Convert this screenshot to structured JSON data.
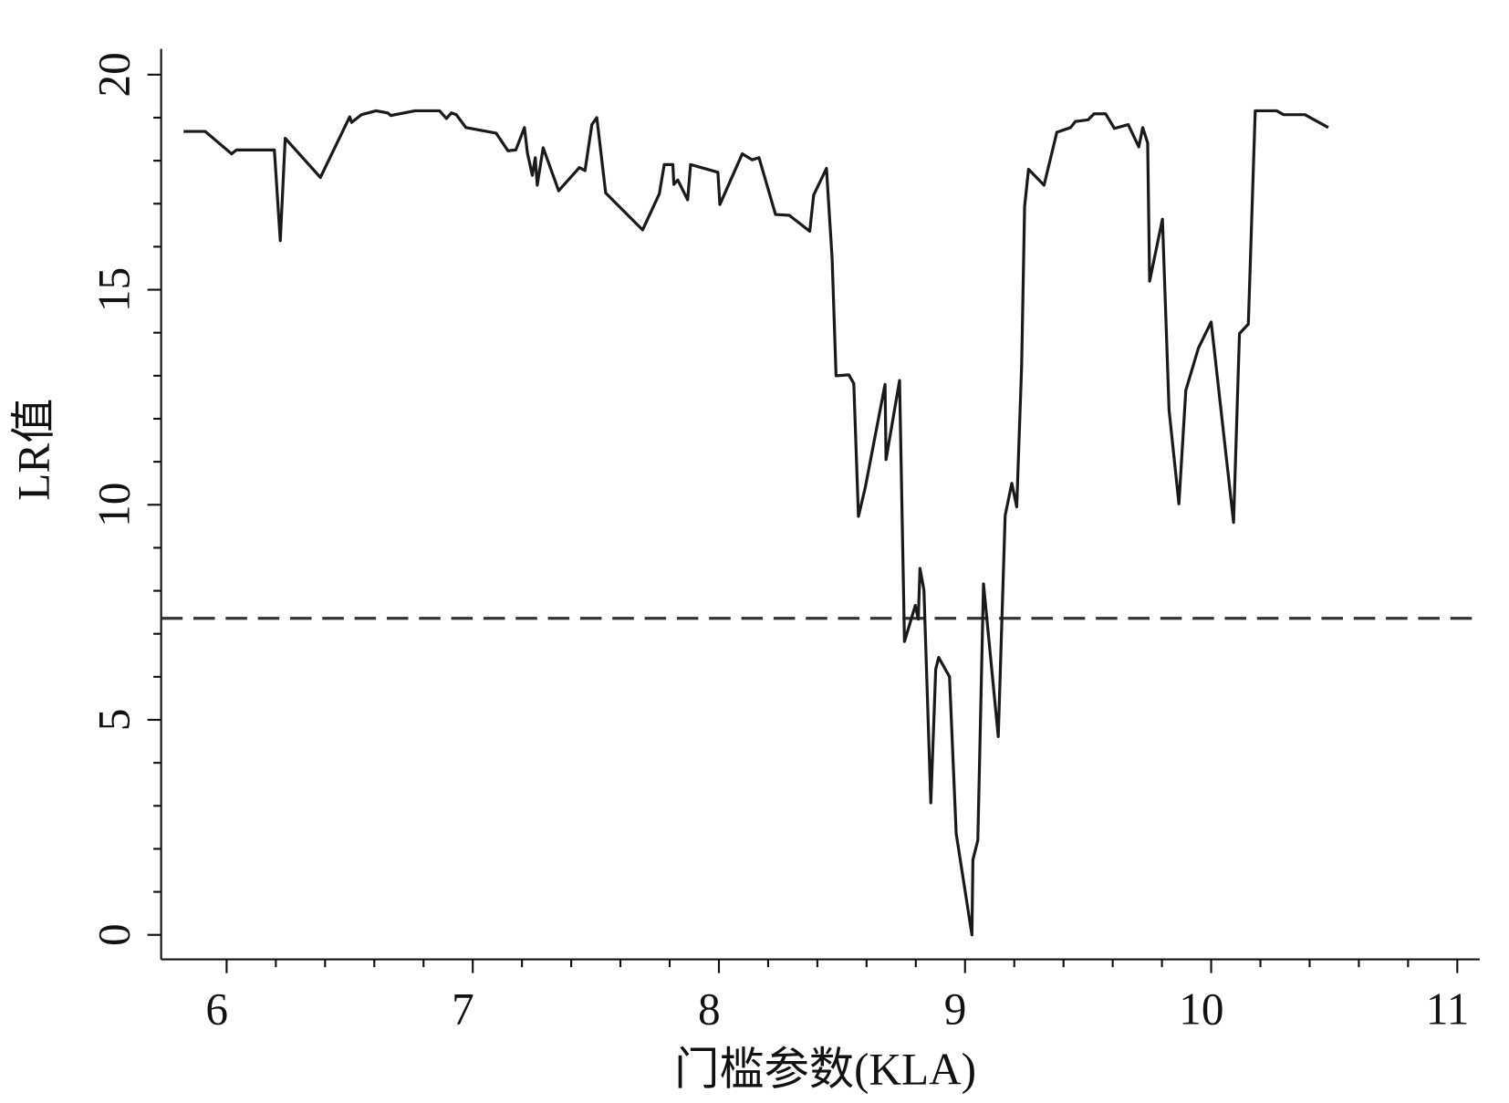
{
  "chart_data": {
    "type": "line",
    "x_label": "门槛参数(KLA)",
    "y_label": "LR值",
    "xlim": [
      5.734,
      11.091
    ],
    "ylim": [
      -0.57,
      20.6
    ],
    "xticks": [
      6,
      7,
      8,
      9,
      10,
      11
    ],
    "yticks": [
      0,
      5,
      10,
      15,
      20
    ],
    "xminorticks": [
      6.2,
      6.4,
      6.6,
      6.8,
      7.2,
      7.4,
      7.6,
      7.8,
      8.2,
      8.4,
      8.6,
      8.8,
      9.2,
      9.4,
      9.6,
      9.8,
      10.2,
      10.4,
      10.6,
      10.8
    ],
    "yminorticks": [
      1,
      2,
      3,
      4,
      6,
      7,
      8,
      9,
      11,
      12,
      13,
      14,
      16,
      17,
      18,
      19
    ],
    "reference_line": {
      "value": 7.36,
      "color": "#333333",
      "dashed": true
    },
    "series": [
      {
        "color": "#1a1a1a",
        "x": [
          5.825,
          5.913,
          6.02,
          6.04,
          6.194,
          6.218,
          6.238,
          6.381,
          6.5,
          6.508,
          6.548,
          6.607,
          6.655,
          6.667,
          6.766,
          6.865,
          6.893,
          6.913,
          6.933,
          6.972,
          7.095,
          7.143,
          7.175,
          7.21,
          7.222,
          7.242,
          7.254,
          7.262,
          7.286,
          7.349,
          7.433,
          7.456,
          7.484,
          7.504,
          7.54,
          7.69,
          7.758,
          7.778,
          7.813,
          7.817,
          7.833,
          7.873,
          7.885,
          7.996,
          8.004,
          8.095,
          8.135,
          8.163,
          8.23,
          8.286,
          8.369,
          8.385,
          8.437,
          8.46,
          8.476,
          8.528,
          8.548,
          8.567,
          8.595,
          8.675,
          8.679,
          8.734,
          8.754,
          8.798,
          8.81,
          8.817,
          8.833,
          8.861,
          8.881,
          8.893,
          8.937,
          8.964,
          9.028,
          9.032,
          9.052,
          9.075,
          9.135,
          9.163,
          9.19,
          9.21,
          9.23,
          9.242,
          9.258,
          9.321,
          9.373,
          9.429,
          9.448,
          9.5,
          9.524,
          9.571,
          9.607,
          9.663,
          9.706,
          9.722,
          9.742,
          9.75,
          9.802,
          9.829,
          9.869,
          9.897,
          9.948,
          10.0,
          10.091,
          10.115,
          10.151,
          10.179,
          10.266,
          10.294,
          10.381,
          10.476
        ],
        "values": [
          18.68,
          18.68,
          18.16,
          18.25,
          18.25,
          16.14,
          18.52,
          17.61,
          19.02,
          18.89,
          19.07,
          19.16,
          19.11,
          19.05,
          19.16,
          19.16,
          18.98,
          19.11,
          19.07,
          18.77,
          18.64,
          18.23,
          18.25,
          18.77,
          18.18,
          17.66,
          18.07,
          17.43,
          18.3,
          17.3,
          17.84,
          17.77,
          18.84,
          19.0,
          17.25,
          16.39,
          17.23,
          17.91,
          17.91,
          17.45,
          17.55,
          17.09,
          17.91,
          17.73,
          16.98,
          18.16,
          18.02,
          18.07,
          16.75,
          16.73,
          16.36,
          17.2,
          17.82,
          15.73,
          13.0,
          13.02,
          12.82,
          9.73,
          10.41,
          12.8,
          11.05,
          12.89,
          6.82,
          7.66,
          7.34,
          8.52,
          8.02,
          3.07,
          6.18,
          6.45,
          6.0,
          2.36,
          0,
          1.75,
          2.2,
          8.16,
          4.61,
          9.75,
          10.5,
          9.95,
          13.23,
          16.93,
          17.8,
          17.43,
          18.66,
          18.77,
          18.91,
          18.95,
          19.09,
          19.09,
          18.75,
          18.84,
          18.32,
          18.77,
          18.41,
          15.2,
          16.64,
          12.2,
          10.02,
          12.66,
          13.64,
          14.25,
          9.59,
          13.98,
          14.2,
          19.16,
          19.16,
          19.07,
          19.07,
          18.77
        ]
      }
    ]
  }
}
